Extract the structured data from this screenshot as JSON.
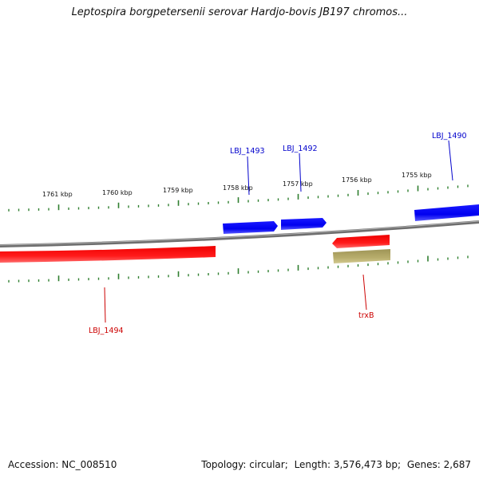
{
  "title": "Leptospira borgpetersenii serovar Hardjo-bovis JB197 chromos...",
  "footer": {
    "accession_label": "Accession:",
    "accession": "NC_008510",
    "topology_label": "Topology:",
    "topology": "circular",
    "length_label": "Length:",
    "length": "3,576,473 bp",
    "genes_label": "Genes:",
    "genes": "2,687"
  },
  "scale": {
    "tick_labels": [
      "1761 kbp",
      "1760 kbp",
      "1759 kbp",
      "1758 kbp",
      "1757 kbp",
      "1756 kbp",
      "1755 kbp"
    ]
  },
  "genes": {
    "forward_strand": [
      "LBJ_1493",
      "LBJ_1492",
      "LBJ_1490"
    ],
    "reverse_strand": [
      "LBJ_1494",
      "trxB"
    ]
  },
  "colors": {
    "forward": "#0000ff",
    "reverse": "#ff0000",
    "forward_label": "#0000cc",
    "reverse_label": "#cc0000",
    "other_feature": "#b5a968",
    "backbone": "#7f7f7f",
    "ticks": "#2f7f2f"
  }
}
